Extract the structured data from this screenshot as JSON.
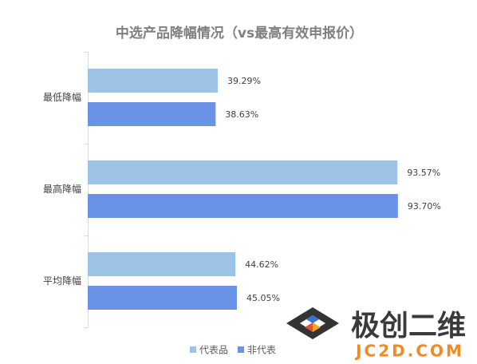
{
  "chart_data": {
    "type": "hbar",
    "title": "中选产品降幅情况（vs最高有效申报价）",
    "categories": [
      "最低降幅",
      "最高降幅",
      "平均降幅"
    ],
    "series": [
      {
        "name": "代表品",
        "color": "#9dc3e6",
        "values": [
          39.29,
          93.57,
          44.62
        ],
        "value_labels": [
          "39.29%",
          "93.57%",
          "44.62%"
        ]
      },
      {
        "name": "非代表",
        "color": "#6a93e8",
        "values": [
          38.63,
          93.7,
          45.05
        ],
        "value_labels": [
          "38.63%",
          "93.70%",
          "45.05%"
        ]
      }
    ],
    "legend": "bottom"
  },
  "watermark": {
    "name": "极创二维",
    "site": "JC2D.COM"
  }
}
